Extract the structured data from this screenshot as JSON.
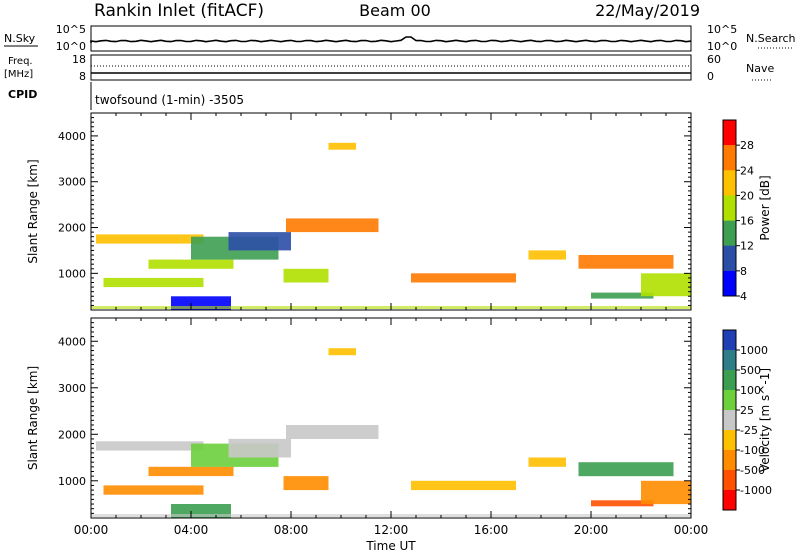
{
  "header": {
    "station": "Rankin Inlet (fitACF)",
    "beam": "Beam 00",
    "date": "22/May/2019"
  },
  "noise_panel": {
    "left_label": "N.Sky",
    "right_label": "N.Search",
    "left_ticks": [
      "10^5",
      "10^0"
    ],
    "right_ticks": [
      "10^5",
      "10^0"
    ]
  },
  "freq_panel": {
    "left_label_1": "Freq.",
    "left_label_2": "[MHz]",
    "right_label": "Nave",
    "left_ticks": [
      "18",
      "8"
    ],
    "right_ticks": [
      "60",
      "0"
    ]
  },
  "cpid": {
    "label": "CPID",
    "text": "twofsound (1-min) -3505"
  },
  "chart_data": [
    {
      "type": "heatmap",
      "quantity": "Power",
      "ylabel": "Slant Range [km]",
      "xlabel": "Time UT",
      "ylim": [
        200,
        4500
      ],
      "yticks": [
        "1000",
        "2000",
        "3000",
        "4000"
      ],
      "x_ticks": [
        "00:00",
        "04:00",
        "08:00",
        "12:00",
        "16:00",
        "20:00",
        "00:00"
      ],
      "colorbar": {
        "label": "Power [dB]",
        "ticks": [
          "28",
          "24",
          "20",
          "16",
          "12",
          "8",
          "4"
        ],
        "colors": [
          "#ff0000",
          "#ff7a00",
          "#ffc000",
          "#b0e000",
          "#3e9e52",
          "#2b4fa6",
          "#0000ff"
        ]
      },
      "regions": [
        {
          "x": [
            0.2,
            4.5
          ],
          "y": [
            1650,
            1850
          ],
          "level": 2
        },
        {
          "x": [
            0.5,
            4.5
          ],
          "y": [
            700,
            900
          ],
          "level": 3
        },
        {
          "x": [
            2.3,
            5.7
          ],
          "y": [
            1100,
            1300
          ],
          "level": 3
        },
        {
          "x": [
            3.2,
            5.6
          ],
          "y": [
            200,
            500
          ],
          "level": 6
        },
        {
          "x": [
            4.0,
            7.5
          ],
          "y": [
            1300,
            1800
          ],
          "level": 4
        },
        {
          "x": [
            5.5,
            8.0
          ],
          "y": [
            1500,
            1900
          ],
          "level": 5
        },
        {
          "x": [
            7.8,
            11.5
          ],
          "y": [
            1900,
            2200
          ],
          "level": 1
        },
        {
          "x": [
            7.7,
            9.5
          ],
          "y": [
            800,
            1100
          ],
          "level": 3
        },
        {
          "x": [
            9.5,
            10.6
          ],
          "y": [
            3700,
            3850
          ],
          "level": 2
        },
        {
          "x": [
            12.8,
            17.0
          ],
          "y": [
            800,
            1000
          ],
          "level": 1
        },
        {
          "x": [
            17.5,
            19.0
          ],
          "y": [
            1300,
            1500
          ],
          "level": 2
        },
        {
          "x": [
            19.5,
            23.3
          ],
          "y": [
            1100,
            1400
          ],
          "level": 1
        },
        {
          "x": [
            20.0,
            22.5
          ],
          "y": [
            450,
            580
          ],
          "level": 4
        },
        {
          "x": [
            22.0,
            24.0
          ],
          "y": [
            500,
            1000
          ],
          "level": 3
        }
      ]
    },
    {
      "type": "heatmap",
      "quantity": "Velocity",
      "ylabel": "Slant Range [km]",
      "xlabel": "Time UT",
      "ylim": [
        200,
        4500
      ],
      "yticks": [
        "1000",
        "2000",
        "3000",
        "4000"
      ],
      "x_ticks": [
        "00:00",
        "04:00",
        "08:00",
        "12:00",
        "16:00",
        "20:00",
        "00:00"
      ],
      "colorbar": {
        "label": "Velocity [m s^-1]",
        "ticks": [
          "1000",
          "500",
          "100",
          "25",
          "-25",
          "-100",
          "-500",
          "-1000"
        ],
        "colors": [
          "#1f3fb5",
          "#2e7e8a",
          "#3c9e50",
          "#6ccf3c",
          "#c8c8c8",
          "#ffc000",
          "#ff8c00",
          "#ff5000",
          "#ff0000"
        ]
      },
      "regions": [
        {
          "x": [
            0.2,
            4.5
          ],
          "y": [
            1650,
            1850
          ],
          "level": 4
        },
        {
          "x": [
            0.5,
            4.5
          ],
          "y": [
            700,
            900
          ],
          "level": 6
        },
        {
          "x": [
            2.3,
            5.7
          ],
          "y": [
            1100,
            1300
          ],
          "level": 6
        },
        {
          "x": [
            3.2,
            5.6
          ],
          "y": [
            200,
            500
          ],
          "level": 2
        },
        {
          "x": [
            4.0,
            7.5
          ],
          "y": [
            1300,
            1800
          ],
          "level": 3
        },
        {
          "x": [
            5.5,
            8.0
          ],
          "y": [
            1500,
            1900
          ],
          "level": 4
        },
        {
          "x": [
            7.8,
            11.5
          ],
          "y": [
            1900,
            2200
          ],
          "level": 4
        },
        {
          "x": [
            7.7,
            9.5
          ],
          "y": [
            800,
            1100
          ],
          "level": 6
        },
        {
          "x": [
            9.5,
            10.6
          ],
          "y": [
            3700,
            3850
          ],
          "level": 5
        },
        {
          "x": [
            12.8,
            17.0
          ],
          "y": [
            800,
            1000
          ],
          "level": 5
        },
        {
          "x": [
            17.5,
            19.0
          ],
          "y": [
            1300,
            1500
          ],
          "level": 5
        },
        {
          "x": [
            19.5,
            23.3
          ],
          "y": [
            1100,
            1400
          ],
          "level": 2
        },
        {
          "x": [
            20.0,
            22.5
          ],
          "y": [
            450,
            580
          ],
          "level": 7
        },
        {
          "x": [
            22.0,
            24.0
          ],
          "y": [
            500,
            1000
          ],
          "level": 6
        }
      ]
    }
  ]
}
